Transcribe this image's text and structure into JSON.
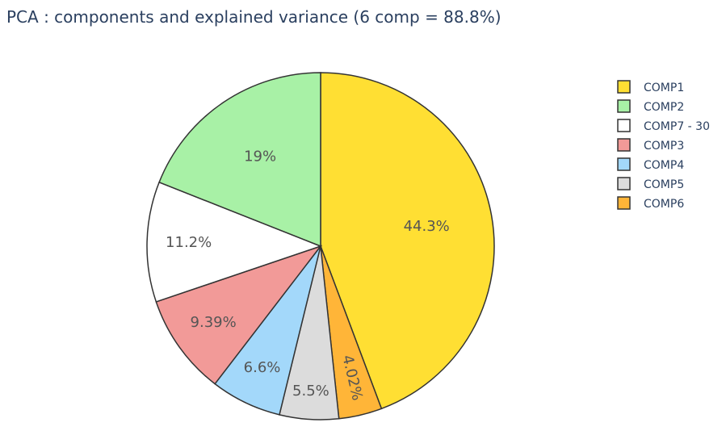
{
  "chart_data": {
    "type": "pie",
    "title": "PCA : components and explained variance (6 comp = 88.8%)",
    "slices": [
      {
        "label": "COMP1",
        "value": 44.3,
        "text": "44.3%",
        "color": "#FFDF33"
      },
      {
        "label": "COMP6",
        "value": 4.02,
        "text": "4.02%",
        "color": "#FFB538"
      },
      {
        "label": "COMP5",
        "value": 5.5,
        "text": "5.5%",
        "color": "#DCDCDC"
      },
      {
        "label": "COMP4",
        "value": 6.6,
        "text": "6.6%",
        "color": "#A3D8FA"
      },
      {
        "label": "COMP3",
        "value": 9.39,
        "text": "9.39%",
        "color": "#F29A98"
      },
      {
        "label": "COMP7 - 30",
        "value": 11.2,
        "text": "11.2%",
        "color": "#FFFFFF"
      },
      {
        "label": "COMP2",
        "value": 19,
        "text": "19%",
        "color": "#A8F1A6"
      }
    ],
    "legend": {
      "position": "right",
      "items": [
        "COMP1",
        "COMP2",
        "COMP7 - 30",
        "COMP3",
        "COMP4",
        "COMP5",
        "COMP6"
      ]
    },
    "direction": "clockwise",
    "start": "top",
    "stroke_color": "#333333"
  }
}
